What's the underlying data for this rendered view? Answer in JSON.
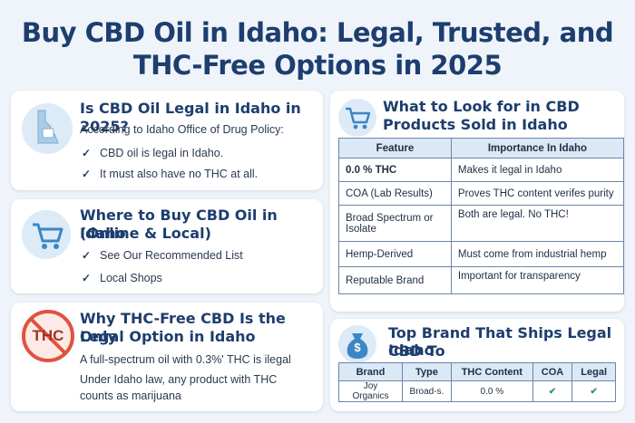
{
  "title_line1": "Buy CBD Oil in Idaho: Legal, Trusted, and",
  "title_line2": "THC-Free Options in 2025",
  "legal": {
    "heading": "Is CBD Oil Legal in Idaho in 2025?",
    "intro": "According to Idaho Office of Drug Policy:",
    "points": [
      "CBD oil is legal in Idaho.",
      "It must also have no THC at all."
    ]
  },
  "where": {
    "heading_line1": "Where to Buy CBD Oil in Idaho",
    "heading_line2": "(Online & Local)",
    "points": [
      "See Our Recommended List",
      "Local Shops"
    ]
  },
  "thcfree": {
    "heading_line1": "Why THC-Free CBD Is the Only",
    "heading_line2": "Legal Option in Idaho",
    "icon_text": "THC",
    "lines": [
      "A full-spectrum oil with 0.3%' THC is ilegal",
      "Under Idaho law, any product with THC",
      "counts as marijuana"
    ]
  },
  "lookfor": {
    "heading_line1": "What to Look for in CBD",
    "heading_line2": "Products Sold in Idaho",
    "columns": [
      "Feature",
      "Importance In Idaho"
    ],
    "rows": [
      {
        "feature": "0.0 % THC",
        "importance": "Makes it legal in Idaho"
      },
      {
        "feature": "COA (Lab Results)",
        "importance": "Proves THC content verifes purity"
      },
      {
        "feature": "Broad Spectrum or Isolate",
        "importance": "Both are legal.   No THC!"
      },
      {
        "feature": "Hemp-Derived",
        "importance": "Must come from industrial hemp"
      },
      {
        "feature": "Reputable Brand",
        "importance": "Important for transparency"
      }
    ]
  },
  "topbrand": {
    "heading_line1": "Top Brand That Ships Legal CBD To",
    "heading_line2": "Idaho",
    "icon_text": "$",
    "columns": [
      "Brand",
      "Type",
      "THC Content",
      "COA",
      "Legal"
    ],
    "row": {
      "brand": "Joy Organics",
      "type": "Broad-s.",
      "thc": "0.0 %",
      "coa": "✔",
      "legal": "✔"
    }
  },
  "colors": {
    "accent": "#1d3e6e",
    "check_green": "#2c9a6a",
    "no_sign": "#e0533d"
  }
}
